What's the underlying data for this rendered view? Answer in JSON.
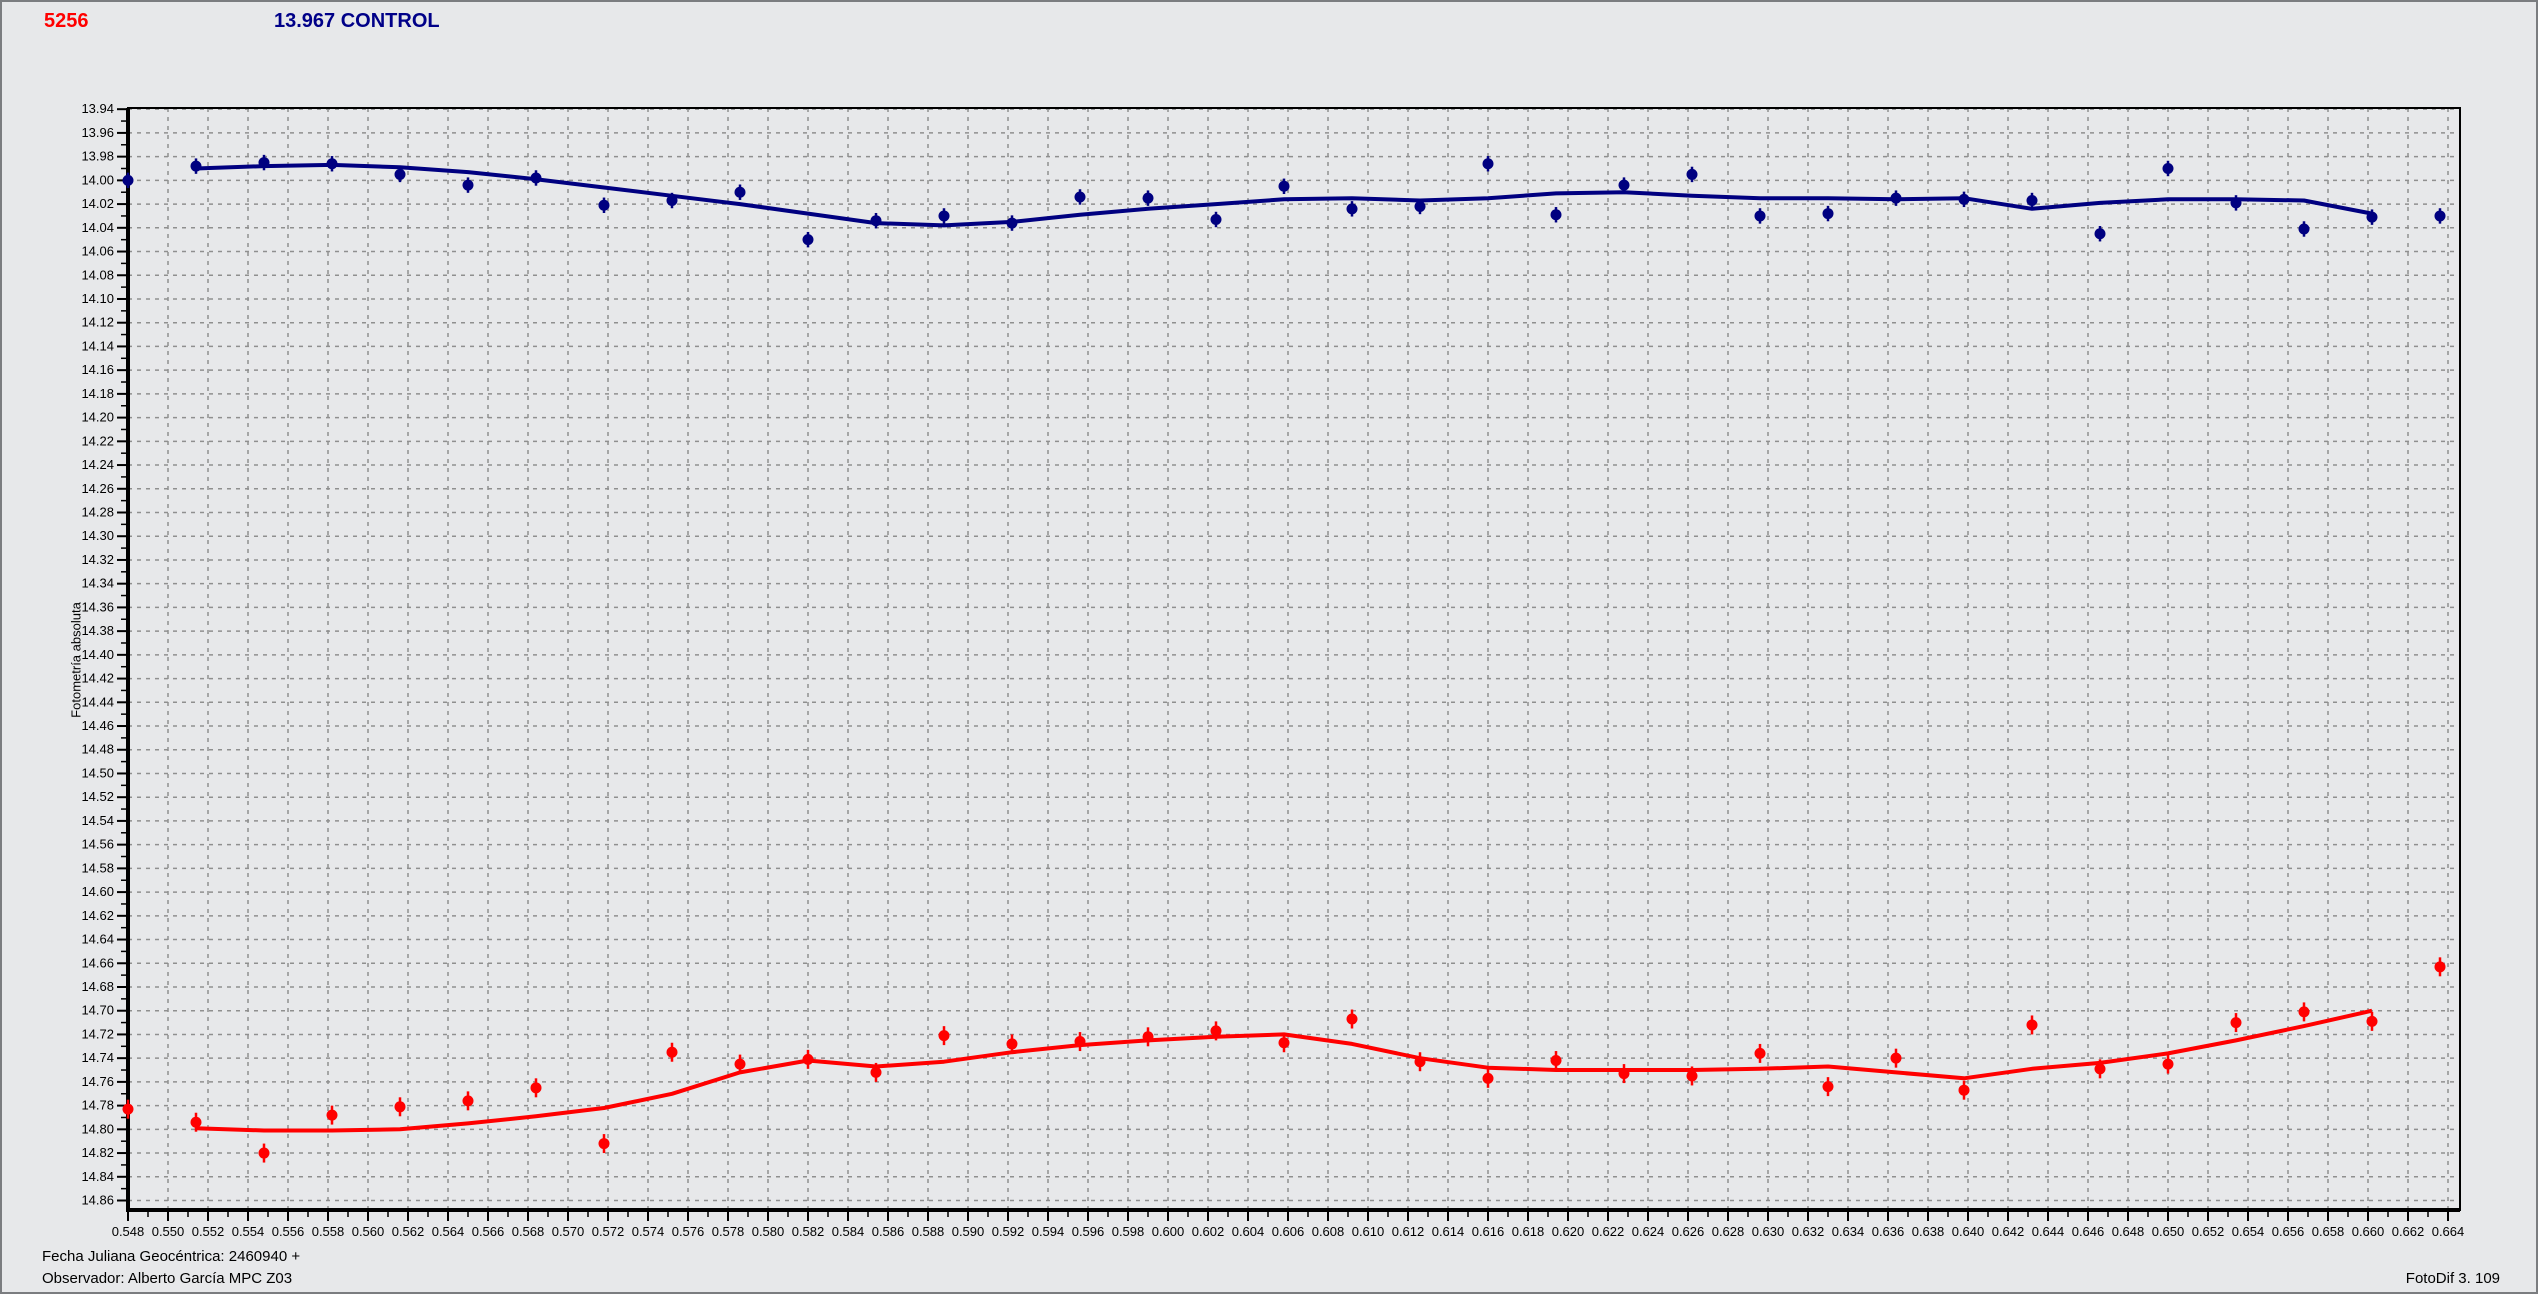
{
  "header": {
    "object_number": "5256",
    "control_label": "13.967 CONTROL"
  },
  "footer": {
    "julian_date_label": "Fecha Juliana Geocéntrica: 2460940 +",
    "observer_label": "Observador: Alberto García MPC Z03",
    "software_label": "FotoDif 3. 109"
  },
  "colors": {
    "object_title": "#ff0000",
    "control_title": "#000088",
    "background": "#e7e8ea",
    "grid": "#8f8f8f",
    "axis": "#000000",
    "control_series": "#000080",
    "object_series": "#ff0000"
  },
  "chart_data": {
    "type": "scatter",
    "title": "",
    "xlabel": "",
    "ylabel": "Fotometría absoluta",
    "grid": true,
    "legend": false,
    "x_axis": {
      "min": 0.548,
      "max": 0.6646,
      "label_step": 0.002,
      "minor_tick_step": 0.001,
      "label_decimals": 3,
      "first_label": 0.548,
      "last_label": 0.664
    },
    "y_axis": {
      "min": 13.939,
      "max": 14.868,
      "label_step": 0.02,
      "minor_tick_step": 0.01,
      "label_decimals": 2,
      "first_label": 13.94,
      "last_label": 14.86,
      "inverted_magnitude_scale": true
    },
    "series": [
      {
        "name": "CONTROL",
        "color": "#000080",
        "marker": "circle",
        "error_bar": 0.0065,
        "x": [
          0.548,
          0.5514,
          0.5548,
          0.5582,
          0.5616,
          0.565,
          0.5684,
          0.5718,
          0.5752,
          0.5786,
          0.582,
          0.5854,
          0.5888,
          0.5922,
          0.5956,
          0.599,
          0.6024,
          0.6058,
          0.6092,
          0.6126,
          0.616,
          0.6194,
          0.6228,
          0.6262,
          0.6296,
          0.633,
          0.6364,
          0.6398,
          0.6432,
          0.6466,
          0.65,
          0.6534,
          0.6568,
          0.6602,
          0.6636
        ],
        "mag": [
          14.0,
          13.988,
          13.985,
          13.986,
          13.995,
          14.004,
          13.998,
          14.021,
          14.017,
          14.01,
          14.05,
          14.034,
          14.03,
          14.036,
          14.014,
          14.015,
          14.033,
          14.005,
          14.024,
          14.022,
          13.986,
          14.029,
          14.004,
          13.995,
          14.03,
          14.028,
          14.015,
          14.016,
          14.017,
          14.045,
          13.99,
          14.019,
          14.041,
          14.031,
          14.03
        ],
        "fit_line": {
          "x": [
            0.5514,
            0.5548,
            0.5582,
            0.5616,
            0.565,
            0.5684,
            0.5718,
            0.5752,
            0.5786,
            0.582,
            0.5854,
            0.5888,
            0.5922,
            0.5956,
            0.599,
            0.6024,
            0.6058,
            0.6092,
            0.6126,
            0.616,
            0.6194,
            0.6228,
            0.6262,
            0.6296,
            0.633,
            0.6364,
            0.6398,
            0.6432,
            0.6466,
            0.65,
            0.6534,
            0.6568,
            0.6602
          ],
          "mag": [
            13.99,
            13.988,
            13.987,
            13.989,
            13.993,
            13.999,
            14.006,
            14.013,
            14.02,
            14.028,
            14.036,
            14.038,
            14.035,
            14.029,
            14.024,
            14.02,
            14.016,
            14.015,
            14.017,
            14.015,
            14.011,
            14.01,
            14.013,
            14.015,
            14.015,
            14.016,
            14.015,
            14.024,
            14.019,
            14.016,
            14.016,
            14.017,
            14.028
          ]
        }
      },
      {
        "name": "5256",
        "color": "#ff0000",
        "marker": "circle",
        "error_bar": 0.008,
        "x": [
          0.548,
          0.5514,
          0.5548,
          0.5582,
          0.5616,
          0.565,
          0.5684,
          0.5718,
          0.5752,
          0.5786,
          0.582,
          0.5854,
          0.5888,
          0.5922,
          0.5956,
          0.599,
          0.6024,
          0.6058,
          0.6092,
          0.6126,
          0.616,
          0.6194,
          0.6228,
          0.6262,
          0.6296,
          0.633,
          0.6364,
          0.6398,
          0.6432,
          0.6466,
          0.65,
          0.6534,
          0.6568,
          0.6602,
          0.6636
        ],
        "mag": [
          14.783,
          14.794,
          14.82,
          14.788,
          14.781,
          14.776,
          14.765,
          14.812,
          14.735,
          14.745,
          14.741,
          14.752,
          14.721,
          14.728,
          14.726,
          14.722,
          14.717,
          14.727,
          14.707,
          14.743,
          14.757,
          14.742,
          14.753,
          14.755,
          14.736,
          14.764,
          14.74,
          14.767,
          14.712,
          14.749,
          14.745,
          14.71,
          14.701,
          14.709,
          14.663
        ],
        "fit_line": {
          "x": [
            0.5514,
            0.5548,
            0.5582,
            0.5616,
            0.565,
            0.5684,
            0.5718,
            0.5752,
            0.5786,
            0.582,
            0.5854,
            0.5888,
            0.5922,
            0.5956,
            0.599,
            0.6024,
            0.6058,
            0.6092,
            0.6126,
            0.616,
            0.6194,
            0.6228,
            0.6262,
            0.6296,
            0.633,
            0.6364,
            0.6398,
            0.6432,
            0.6466,
            0.65,
            0.6534,
            0.6568,
            0.6602
          ],
          "mag": [
            14.799,
            14.801,
            14.801,
            14.8,
            14.795,
            14.789,
            14.782,
            14.77,
            14.752,
            14.742,
            14.747,
            14.743,
            14.735,
            14.729,
            14.725,
            14.722,
            14.72,
            14.728,
            14.74,
            14.748,
            14.75,
            14.75,
            14.75,
            14.749,
            14.747,
            14.752,
            14.757,
            14.749,
            14.744,
            14.736,
            14.725,
            14.713,
            14.7
          ]
        }
      }
    ]
  }
}
